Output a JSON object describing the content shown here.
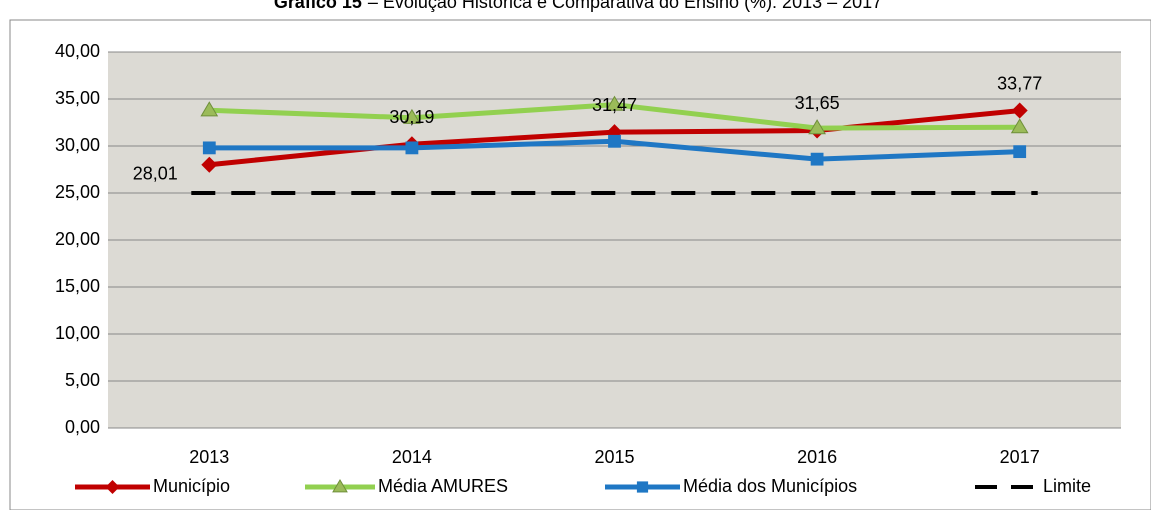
{
  "chart_data": {
    "type": "line",
    "title_number": "Gráfico 15",
    "title": "– Evolução Histórica e Comparativa do Ensino (%): 2013 – 2017",
    "categories": [
      "2013",
      "2014",
      "2015",
      "2016",
      "2017"
    ],
    "series": [
      {
        "name": "Município",
        "color": "#c00000",
        "marker": "diamond",
        "values": [
          28.01,
          30.19,
          31.47,
          31.65,
          33.77
        ],
        "value_labels": [
          "28,01",
          "30,19",
          "31,47",
          "31,65",
          "33,77"
        ]
      },
      {
        "name": "Média AMURES",
        "color": "#92d050",
        "marker": "triangle",
        "values": [
          33.8,
          33.0,
          34.4,
          31.9,
          32.0
        ]
      },
      {
        "name": "Média dos Municípios",
        "color": "#1f77c4",
        "marker": "square",
        "values": [
          29.8,
          29.8,
          30.5,
          28.6,
          29.4
        ]
      },
      {
        "name": "Limite",
        "color": "#000000",
        "dashed": true,
        "values": [
          25,
          25,
          25,
          25,
          25
        ]
      }
    ],
    "ylim": [
      0,
      40
    ],
    "yticks": [
      {
        "value": 0,
        "label": "0,00"
      },
      {
        "value": 5,
        "label": "5,00"
      },
      {
        "value": 10,
        "label": "10,00"
      },
      {
        "value": 15,
        "label": "15,00"
      },
      {
        "value": 20,
        "label": "20,00"
      },
      {
        "value": 25,
        "label": "25,00"
      },
      {
        "value": 30,
        "label": "30,00"
      },
      {
        "value": 35,
        "label": "35,00"
      },
      {
        "value": 40,
        "label": "40,00"
      }
    ],
    "grid": true
  }
}
